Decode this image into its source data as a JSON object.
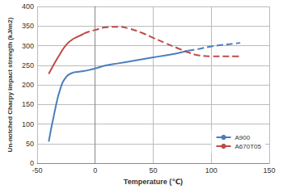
{
  "chart_data": {
    "type": "line",
    "x_label": "Temperature (℃)",
    "y_label": "Un-notched Charpy impact strength (kJ/m2)",
    "x": [
      -40,
      -35,
      -30,
      -25,
      -20,
      -15,
      -10,
      -5,
      0,
      10,
      20,
      30,
      40,
      50,
      60,
      70,
      80,
      90,
      100,
      110,
      120,
      125
    ],
    "series": [
      {
        "name": "A900",
        "color": "#4a7ebb",
        "line_style": "solid",
        "values": [
          55,
          130,
          190,
          220,
          230,
          233,
          235,
          238,
          242,
          250,
          255,
          260,
          265,
          270,
          275,
          280,
          287,
          null,
          null,
          null,
          null,
          null
        ]
      },
      {
        "name": "A900",
        "color": "#4a7ebb",
        "line_style": "dashed",
        "values": [
          null,
          null,
          null,
          null,
          null,
          null,
          null,
          null,
          null,
          null,
          null,
          null,
          null,
          null,
          null,
          null,
          287,
          292,
          298,
          302,
          305,
          307
        ]
      },
      {
        "name": "A670T05",
        "color": "#be4b48",
        "line_style": "solid",
        "values": [
          228,
          255,
          280,
          302,
          315,
          323,
          330,
          null,
          null,
          null,
          null,
          null,
          null,
          null,
          null,
          null,
          null,
          null,
          null,
          null,
          null,
          null
        ]
      },
      {
        "name": "A670T05",
        "color": "#be4b48",
        "line_style": "dashed",
        "values": [
          null,
          null,
          null,
          null,
          null,
          null,
          330,
          336,
          340,
          347,
          348,
          343,
          333,
          320,
          307,
          295,
          283,
          275,
          273,
          273,
          273,
          273
        ]
      }
    ],
    "xlim": [
      -50,
      150
    ],
    "xticks": [
      -50,
      0,
      50,
      100,
      150
    ],
    "ylim": [
      0,
      400
    ],
    "yticks": [
      0,
      50,
      100,
      150,
      200,
      250,
      300,
      350,
      400
    ],
    "grid": true,
    "legend": "lower right"
  }
}
